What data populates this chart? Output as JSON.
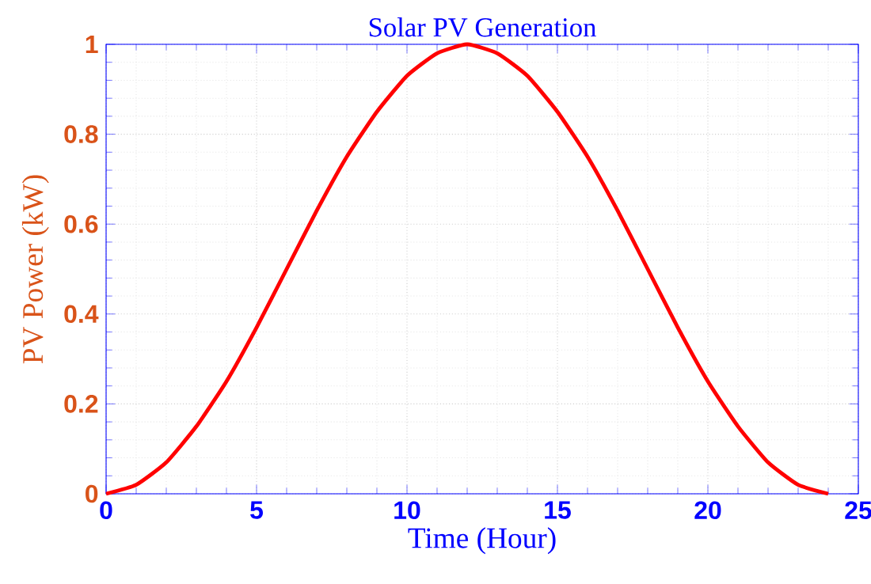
{
  "chart_data": {
    "type": "line",
    "title": "Solar PV Generation",
    "xlabel": "Time (Hour)",
    "ylabel": "PV Power (kW)",
    "x": [
      0,
      1,
      2,
      3,
      4,
      5,
      6,
      7,
      8,
      9,
      10,
      11,
      12,
      13,
      14,
      15,
      16,
      17,
      18,
      19,
      20,
      21,
      22,
      23,
      24
    ],
    "values": [
      0,
      0.02,
      0.07,
      0.15,
      0.25,
      0.37,
      0.5,
      0.63,
      0.75,
      0.85,
      0.93,
      0.98,
      1,
      0.98,
      0.93,
      0.85,
      0.75,
      0.63,
      0.5,
      0.37,
      0.25,
      0.15,
      0.07,
      0.02,
      0
    ],
    "color": "#ff0000",
    "xlim": [
      0,
      25
    ],
    "ylim": [
      0,
      1
    ],
    "xticks": [
      0,
      5,
      10,
      15,
      20,
      25
    ],
    "yticks": [
      0,
      0.2,
      0.4,
      0.6,
      0.8,
      1
    ],
    "grid": true
  }
}
